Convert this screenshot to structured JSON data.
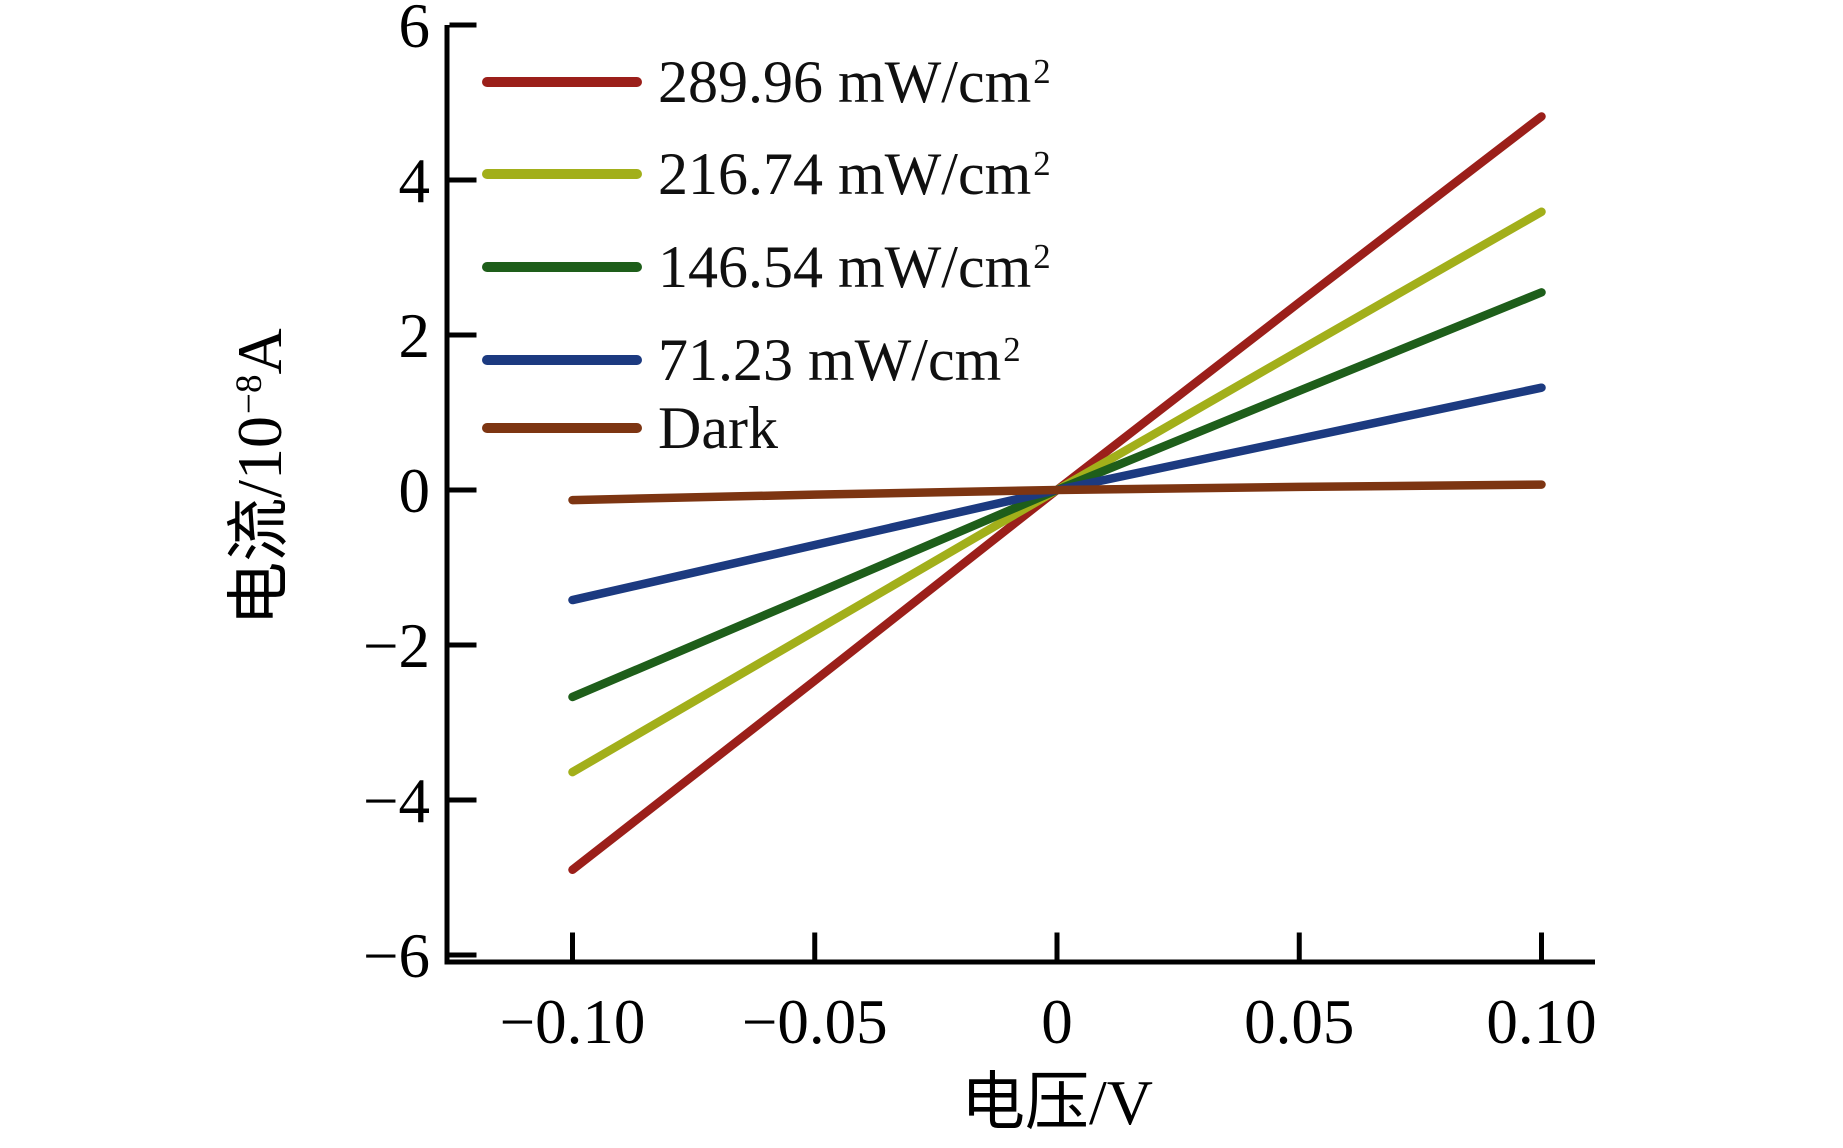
{
  "chart_data": {
    "type": "line",
    "title": "",
    "xlabel": "电压/V",
    "ylabel": "电流/10−8A",
    "ylabel_parts": {
      "pre": "电流/10",
      "sup": "−8",
      "post": "A"
    },
    "xlim": [
      -0.125,
      0.111
    ],
    "ylim": [
      -6,
      6
    ],
    "grid": false,
    "legend_position": "upper left",
    "x_ticks": {
      "values": [
        -0.1,
        -0.05,
        0,
        0.05,
        0.1
      ],
      "labels": [
        "−0.10",
        "−0.05",
        "0",
        "0.05",
        "0.10"
      ]
    },
    "y_ticks": {
      "values": [
        -6,
        -4,
        -2,
        0,
        2,
        4,
        6
      ],
      "labels": [
        "−6",
        "−4",
        "−2",
        "0",
        "2",
        "4",
        "6"
      ]
    },
    "x": [
      -0.1,
      -0.05,
      0,
      0.05,
      0.1
    ],
    "series": [
      {
        "name": "289.96 mW/cm²",
        "legend": {
          "base": "289.96 mW/cm",
          "sup": "2"
        },
        "color": "#9b1f1a",
        "values": [
          -4.9,
          -2.46,
          0,
          2.42,
          4.82
        ]
      },
      {
        "name": "216.74 mW/cm²",
        "legend": {
          "base": "216.74 mW/cm",
          "sup": "2"
        },
        "color": "#a2af1a",
        "values": [
          -3.64,
          -1.82,
          0,
          1.8,
          3.59
        ]
      },
      {
        "name": "146.54 mW/cm²",
        "legend": {
          "base": "146.54 mW/cm",
          "sup": "2"
        },
        "color": "#1e5e1a",
        "values": [
          -2.67,
          -1.34,
          0,
          1.28,
          2.55
        ]
      },
      {
        "name": "71.23 mW/cm²",
        "legend": {
          "base": "71.23 mW/cm",
          "sup": "2"
        },
        "color": "#1c3a80",
        "values": [
          -1.42,
          -0.71,
          0,
          0.66,
          1.32
        ]
      },
      {
        "name": "Dark",
        "legend": {
          "base": "Dark",
          "sup": ""
        },
        "color": "#7d3512",
        "values": [
          -0.13,
          -0.06,
          0,
          0.04,
          0.07
        ]
      }
    ],
    "axis_color": "#000000",
    "tick_label_color": "#000000"
  }
}
